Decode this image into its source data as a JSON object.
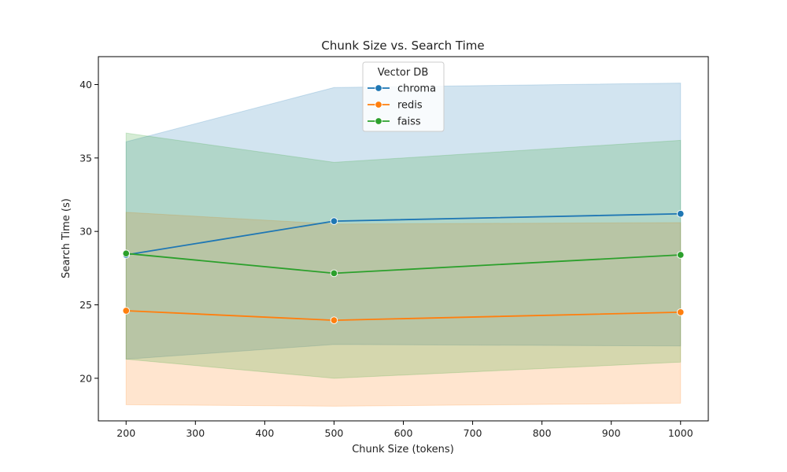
{
  "chart_data": {
    "type": "line",
    "title": "Chunk Size vs. Search Time",
    "xlabel": "Chunk Size (tokens)",
    "ylabel": "Search Time (s)",
    "xlim": [
      160,
      1040
    ],
    "ylim": [
      17.1,
      41.9
    ],
    "xticks": [
      200,
      300,
      400,
      500,
      600,
      700,
      800,
      900,
      1000
    ],
    "yticks": [
      20,
      25,
      30,
      35,
      40
    ],
    "x": [
      200,
      500,
      1000
    ],
    "legend": {
      "title": "Vector DB",
      "position": "top-center"
    },
    "series": [
      {
        "name": "chroma",
        "color": "#1f77b4",
        "values": [
          28.4,
          30.7,
          31.2
        ],
        "ci_low": [
          21.3,
          22.3,
          22.2
        ],
        "ci_high": [
          36.1,
          39.8,
          40.1
        ]
      },
      {
        "name": "redis",
        "color": "#ff7f0e",
        "values": [
          24.6,
          23.95,
          24.5
        ],
        "ci_low": [
          18.2,
          18.1,
          18.3
        ],
        "ci_high": [
          31.3,
          30.5,
          30.6
        ]
      },
      {
        "name": "faiss",
        "color": "#2ca02c",
        "values": [
          28.5,
          27.15,
          28.4
        ],
        "ci_low": [
          21.3,
          20.0,
          21.1
        ],
        "ci_high": [
          36.7,
          34.7,
          36.2
        ]
      }
    ]
  }
}
